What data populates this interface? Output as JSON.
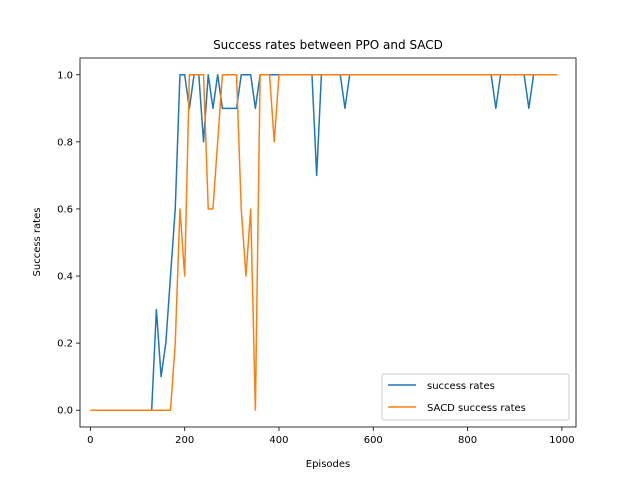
{
  "chart_data": {
    "type": "line",
    "title": "Success rates between PPO and SACD",
    "xlabel": "Episodes",
    "ylabel": "Success rates",
    "xlim": [
      -22,
      1030
    ],
    "ylim": [
      -0.05,
      1.05
    ],
    "xticks": [
      0,
      200,
      400,
      600,
      800,
      1000
    ],
    "yticks": [
      0.0,
      0.2,
      0.4,
      0.6,
      0.8,
      1.0
    ],
    "xtick_labels": [
      "0",
      "200",
      "400",
      "600",
      "800",
      "1000"
    ],
    "ytick_labels": [
      "0.0",
      "0.2",
      "0.4",
      "0.6",
      "0.8",
      "1.0"
    ],
    "grid": false,
    "legend_position": "lower-right",
    "series": [
      {
        "name": "success rates",
        "color": "#1f77b4",
        "x": [
          0,
          10,
          20,
          30,
          40,
          50,
          60,
          70,
          80,
          90,
          100,
          110,
          120,
          130,
          140,
          150,
          160,
          170,
          180,
          190,
          200,
          210,
          220,
          230,
          240,
          250,
          260,
          270,
          280,
          290,
          300,
          310,
          320,
          330,
          340,
          350,
          360,
          370,
          380,
          390,
          400,
          410,
          420,
          430,
          440,
          450,
          460,
          470,
          480,
          490,
          500,
          510,
          520,
          530,
          540,
          550,
          560,
          570,
          580,
          590,
          600,
          610,
          620,
          630,
          640,
          650,
          660,
          670,
          680,
          690,
          700,
          710,
          720,
          730,
          740,
          750,
          760,
          770,
          780,
          790,
          800,
          810,
          820,
          830,
          840,
          850,
          860,
          870,
          880,
          890,
          900,
          910,
          920,
          930,
          940,
          950,
          960,
          970,
          980,
          990
        ],
        "y": [
          0,
          0,
          0,
          0,
          0,
          0,
          0,
          0,
          0,
          0,
          0,
          0,
          0,
          0,
          0.3,
          0.1,
          0.2,
          0.4,
          0.6,
          1.0,
          1.0,
          0.9,
          1.0,
          1.0,
          0.8,
          1.0,
          0.9,
          1.0,
          0.9,
          0.9,
          0.9,
          0.9,
          1.0,
          1.0,
          1.0,
          0.9,
          1.0,
          1.0,
          1.0,
          1.0,
          1.0,
          1.0,
          1.0,
          1.0,
          1.0,
          1.0,
          1.0,
          1.0,
          0.7,
          1.0,
          1.0,
          1.0,
          1.0,
          1.0,
          0.9,
          1.0,
          1.0,
          1.0,
          1.0,
          1.0,
          1.0,
          1.0,
          1.0,
          1.0,
          1.0,
          1.0,
          1.0,
          1.0,
          1.0,
          1.0,
          1.0,
          1.0,
          1.0,
          1.0,
          1.0,
          1.0,
          1.0,
          1.0,
          1.0,
          1.0,
          1.0,
          1.0,
          1.0,
          1.0,
          1.0,
          1.0,
          0.9,
          1.0,
          1.0,
          1.0,
          1.0,
          1.0,
          1.0,
          0.9,
          1.0,
          1.0,
          1.0,
          1.0,
          1.0,
          1.0
        ]
      },
      {
        "name": "SACD success rates",
        "color": "#ff7f0e",
        "x": [
          0,
          10,
          20,
          30,
          40,
          50,
          60,
          70,
          80,
          90,
          100,
          110,
          120,
          130,
          140,
          150,
          160,
          170,
          180,
          190,
          200,
          210,
          220,
          230,
          240,
          250,
          260,
          270,
          280,
          290,
          300,
          310,
          320,
          330,
          340,
          350,
          360,
          370,
          380,
          390,
          400,
          410,
          420,
          430,
          440,
          450,
          460,
          470,
          480,
          490,
          500,
          510,
          520,
          530,
          540,
          550,
          560,
          570,
          580,
          590,
          600,
          610,
          620,
          630,
          640,
          650,
          660,
          670,
          680,
          690,
          700,
          710,
          720,
          730,
          740,
          750,
          760,
          770,
          780,
          790,
          800,
          810,
          820,
          830,
          840,
          850,
          860,
          870,
          880,
          890,
          900,
          910,
          920,
          930,
          940,
          950,
          960,
          970,
          980,
          990
        ],
        "y": [
          0,
          0,
          0,
          0,
          0,
          0,
          0,
          0,
          0,
          0,
          0,
          0,
          0,
          0,
          0,
          0,
          0,
          0,
          0.2,
          0.6,
          0.4,
          1.0,
          1.0,
          1.0,
          1.0,
          0.6,
          0.6,
          0.8,
          1.0,
          1.0,
          1.0,
          1.0,
          0.6,
          0.4,
          0.6,
          0.0,
          1.0,
          1.0,
          1.0,
          0.8,
          1.0,
          1.0,
          1.0,
          1.0,
          1.0,
          1.0,
          1.0,
          1.0,
          1.0,
          1.0,
          1.0,
          1.0,
          1.0,
          1.0,
          1.0,
          1.0,
          1.0,
          1.0,
          1.0,
          1.0,
          1.0,
          1.0,
          1.0,
          1.0,
          1.0,
          1.0,
          1.0,
          1.0,
          1.0,
          1.0,
          1.0,
          1.0,
          1.0,
          1.0,
          1.0,
          1.0,
          1.0,
          1.0,
          1.0,
          1.0,
          1.0,
          1.0,
          1.0,
          1.0,
          1.0,
          1.0,
          1.0,
          1.0,
          1.0,
          1.0,
          1.0,
          1.0,
          1.0,
          1.0,
          1.0,
          1.0,
          1.0,
          1.0,
          1.0,
          1.0
        ]
      }
    ]
  }
}
